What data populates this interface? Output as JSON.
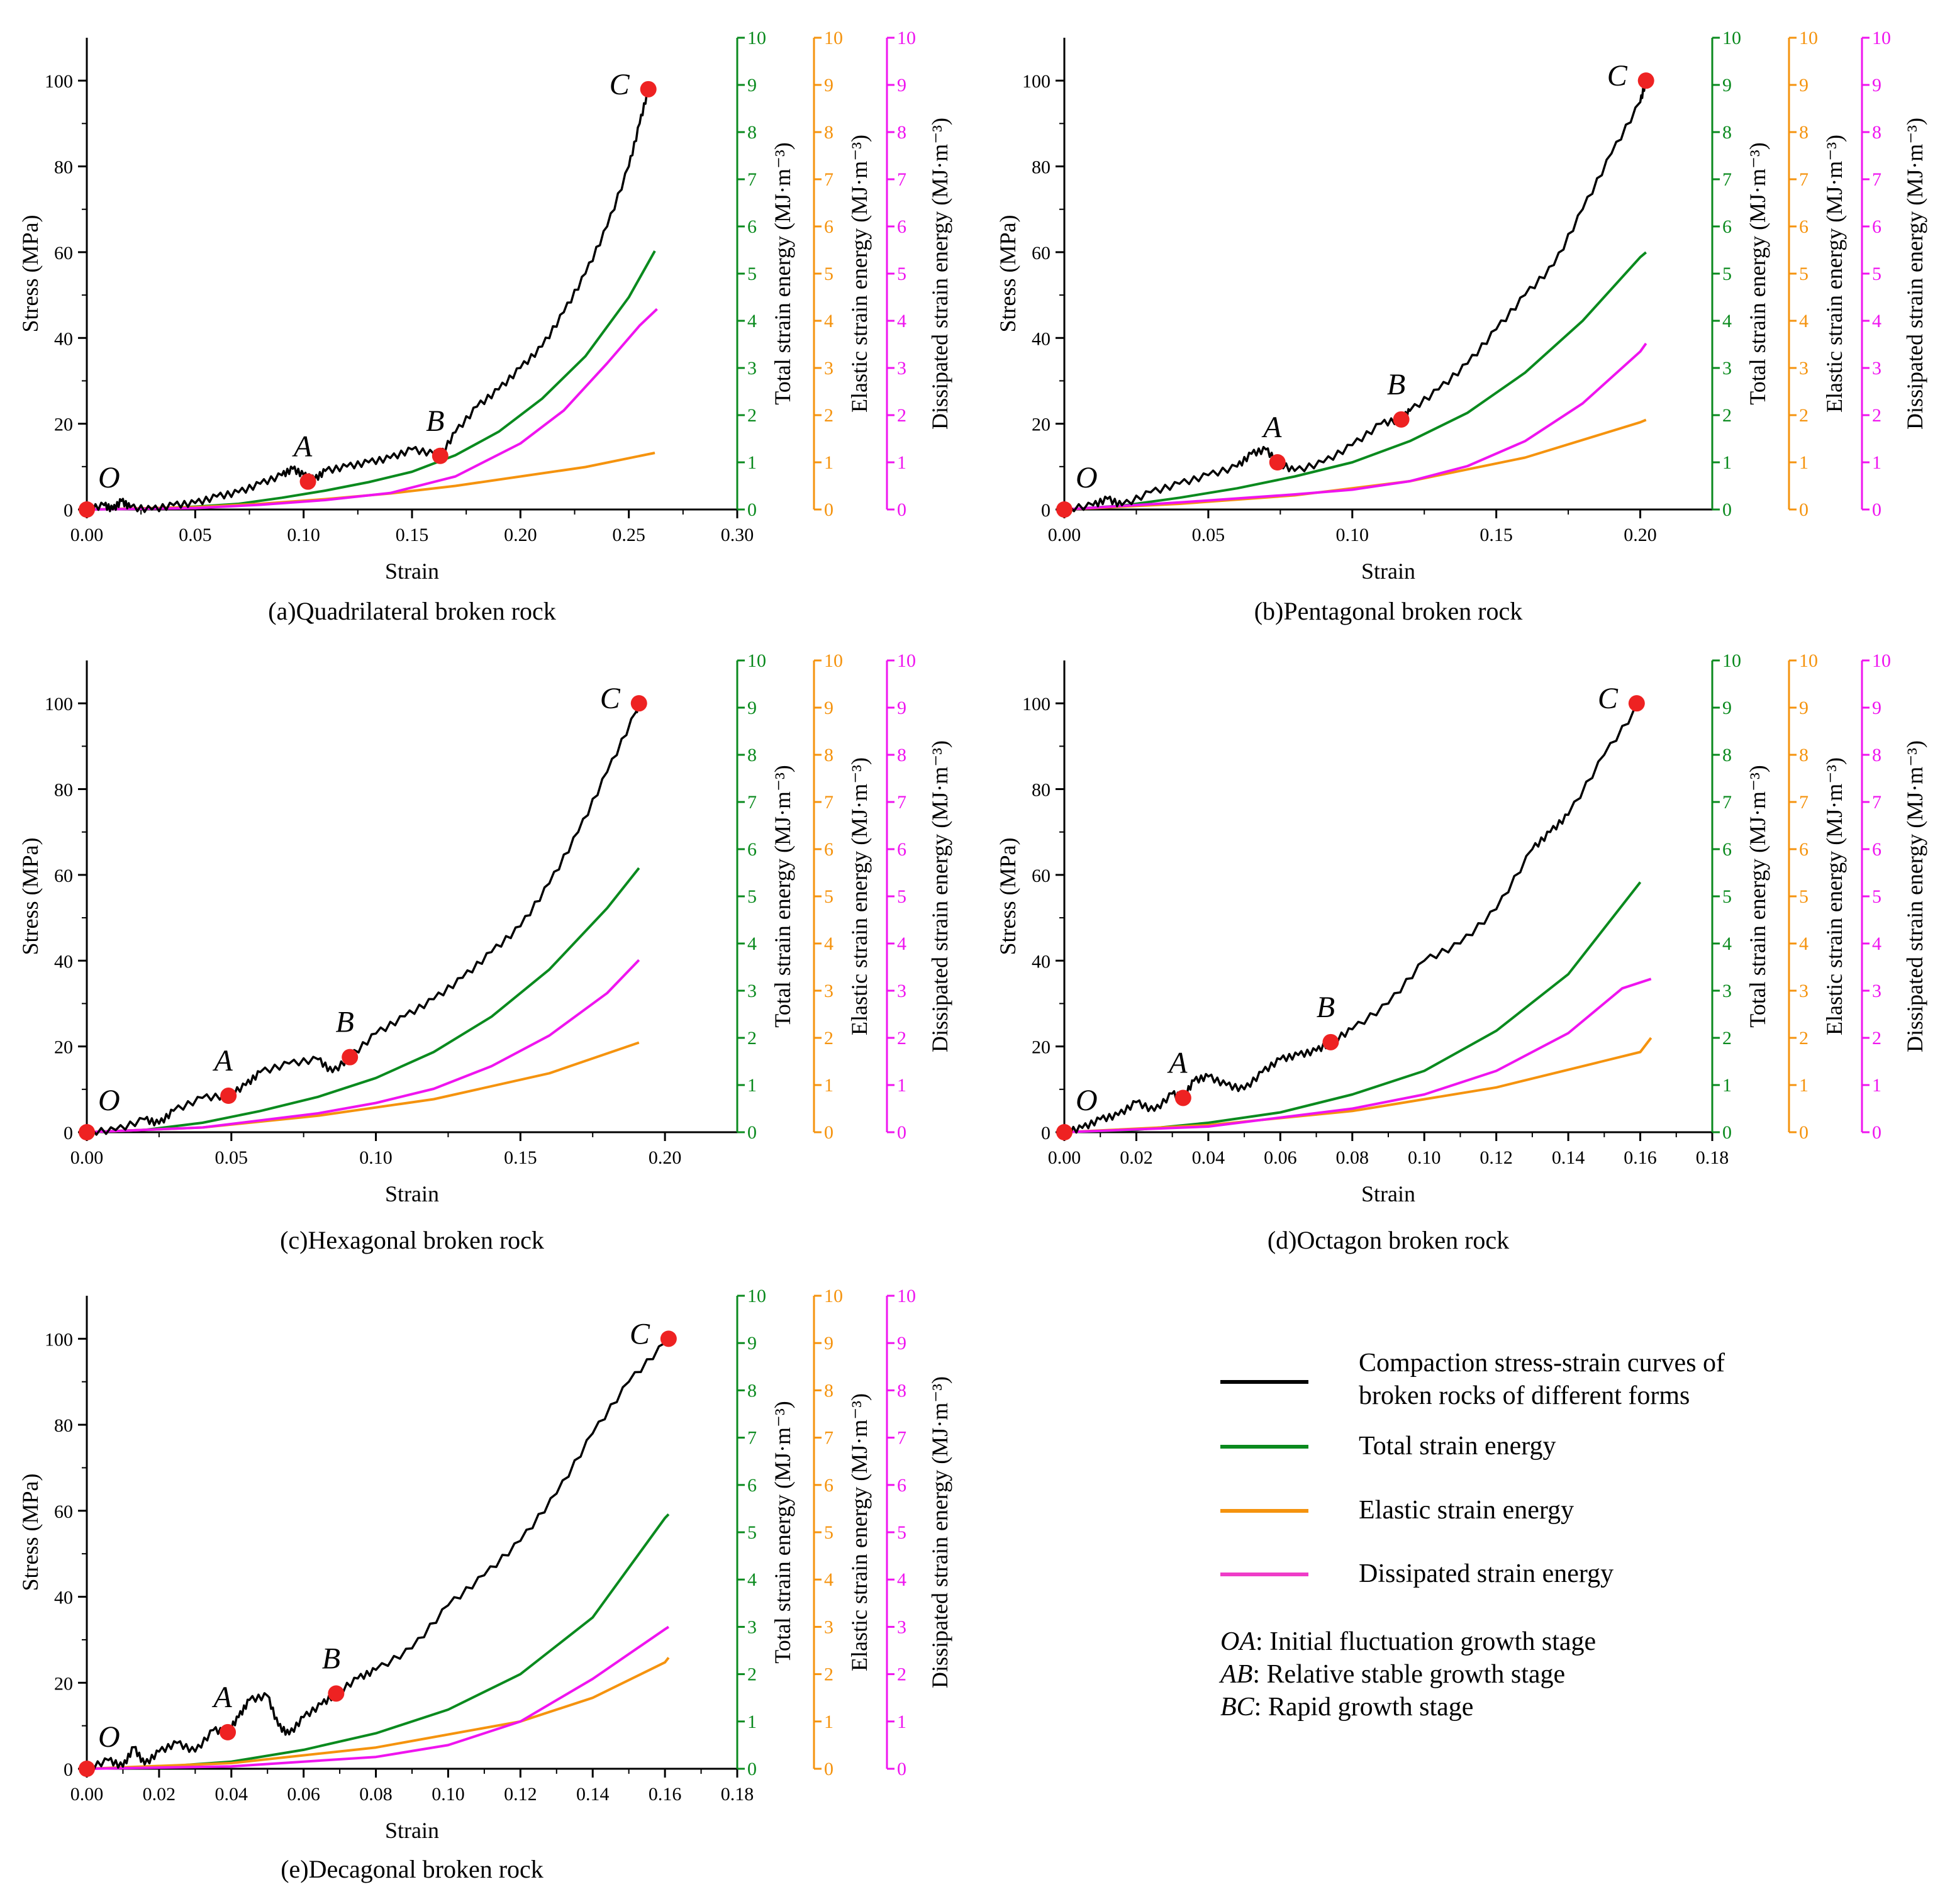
{
  "y_axis_labels": {
    "stress": "Stress (MPa)",
    "total": "Total strain energy (MJ·m⁻³)",
    "elastic": "Elastic strain energy (MJ·m⁻³)",
    "dissipated": "Dissipated strain energy (MJ·m⁻³)"
  },
  "colors": {
    "stress": "#000000",
    "total": "#0a8a1e",
    "elastic": "#f5930e",
    "dissipated": "#ef14ef",
    "points": "#ee2222",
    "total_axis": "#0a8a1e",
    "elastic_axis": "#f5930e",
    "dissipated_axis": "#ef14ef"
  },
  "legend": {
    "entries": [
      {
        "label": "Compaction stress-strain curves of",
        "label2": "broken rocks of different forms",
        "color": "#000000"
      },
      {
        "label": "Total strain energy",
        "color": "#0a8a1e"
      },
      {
        "label": "Elastic strain energy",
        "color": "#f5930e"
      },
      {
        "label": "Dissipated strain energy",
        "color": "#ef3cc8"
      }
    ],
    "stages": [
      {
        "abbr": "OA",
        "text": ": Initial fluctuation growth stage"
      },
      {
        "abbr": "AB",
        "text": ": Relative stable growth stage"
      },
      {
        "abbr": "BC",
        "text": ": Rapid growth stage"
      }
    ]
  },
  "chart_data": [
    {
      "type": "line",
      "caption": "(a)Quadrilateral broken rock",
      "xlabel": "Strain",
      "ylabel": "Stress (MPa)",
      "xlim": [
        0,
        0.3
      ],
      "xticks": [
        "0.00",
        "0.05",
        "0.10",
        "0.15",
        "0.20",
        "0.25",
        "0.30"
      ],
      "ylim": [
        0,
        110
      ],
      "yticks": [
        "0",
        "20",
        "40",
        "60",
        "80",
        "100"
      ],
      "energy_ylim": [
        0,
        10
      ],
      "energy_ticks": [
        "0",
        "1",
        "2",
        "3",
        "4",
        "5",
        "6",
        "7",
        "8",
        "9",
        "10"
      ],
      "stress": {
        "x": [
          0,
          0.008,
          0.012,
          0.016,
          0.02,
          0.03,
          0.04,
          0.05,
          0.06,
          0.07,
          0.08,
          0.09,
          0.095,
          0.1,
          0.105,
          0.11,
          0.12,
          0.13,
          0.14,
          0.15,
          0.16,
          0.163,
          0.17,
          0.18,
          0.19,
          0.2,
          0.21,
          0.22,
          0.23,
          0.24,
          0.25,
          0.255,
          0.259
        ],
        "y": [
          0,
          1,
          0,
          2,
          0.5,
          0,
          1,
          1.5,
          3,
          4,
          6,
          8,
          9.5,
          8,
          7,
          9,
          10,
          11,
          12,
          14,
          13,
          12.5,
          18,
          24,
          28,
          33,
          38,
          46,
          55,
          66,
          80,
          90,
          98
        ]
      },
      "total": {
        "x": [
          0,
          0.03,
          0.05,
          0.07,
          0.09,
          0.11,
          0.13,
          0.15,
          0.17,
          0.19,
          0.21,
          0.23,
          0.25,
          0.262
        ],
        "y": [
          0,
          0.02,
          0.06,
          0.12,
          0.25,
          0.4,
          0.58,
          0.8,
          1.15,
          1.65,
          2.35,
          3.25,
          4.5,
          5.48
        ]
      },
      "elastic": {
        "x": [
          0,
          0.05,
          0.08,
          0.11,
          0.14,
          0.17,
          0.2,
          0.23,
          0.262
        ],
        "y": [
          0,
          0.05,
          0.12,
          0.22,
          0.34,
          0.5,
          0.7,
          0.9,
          1.2
        ]
      },
      "dissipated": {
        "x": [
          0,
          0.05,
          0.08,
          0.11,
          0.14,
          0.17,
          0.2,
          0.22,
          0.24,
          0.255,
          0.263
        ],
        "y": [
          0,
          0.03,
          0.1,
          0.2,
          0.35,
          0.7,
          1.4,
          2.1,
          3.1,
          3.9,
          4.25
        ]
      },
      "points": [
        {
          "label": "O",
          "x": 0,
          "y": 0
        },
        {
          "label": "A",
          "x": 0.102,
          "y": 6.5
        },
        {
          "label": "B",
          "x": 0.163,
          "y": 12.5
        },
        {
          "label": "C",
          "x": 0.259,
          "y": 98
        }
      ]
    },
    {
      "type": "line",
      "caption": "(b)Pentagonal broken rock",
      "xlabel": "Strain",
      "ylabel": "Stress (MPa)",
      "xlim": [
        0,
        0.225
      ],
      "xticks": [
        "0.00",
        "0.05",
        "0.10",
        "0.15",
        "0.20"
      ],
      "ylim": [
        0,
        110
      ],
      "yticks": [
        "0",
        "20",
        "40",
        "60",
        "80",
        "100"
      ],
      "energy_ylim": [
        0,
        10
      ],
      "energy_ticks": [
        "0",
        "1",
        "2",
        "3",
        "4",
        "5",
        "6",
        "7",
        "8",
        "9",
        "10"
      ],
      "stress": {
        "x": [
          0,
          0.01,
          0.015,
          0.02,
          0.03,
          0.04,
          0.05,
          0.06,
          0.065,
          0.07,
          0.074,
          0.08,
          0.09,
          0.1,
          0.11,
          0.117,
          0.12,
          0.13,
          0.14,
          0.15,
          0.16,
          0.17,
          0.18,
          0.19,
          0.2,
          0.202
        ],
        "y": [
          0,
          1,
          2.5,
          1,
          4,
          6,
          8,
          10,
          13,
          14,
          11,
          9,
          11,
          15,
          20,
          21,
          23,
          28,
          34,
          42,
          50,
          57,
          70,
          83,
          95,
          100
        ]
      },
      "total": {
        "x": [
          0,
          0.02,
          0.04,
          0.06,
          0.08,
          0.1,
          0.12,
          0.14,
          0.16,
          0.18,
          0.2,
          0.202
        ],
        "y": [
          0,
          0.08,
          0.25,
          0.45,
          0.7,
          1.0,
          1.45,
          2.05,
          2.9,
          4.0,
          5.35,
          5.45
        ]
      },
      "elastic": {
        "x": [
          0,
          0.04,
          0.08,
          0.12,
          0.16,
          0.2,
          0.202
        ],
        "y": [
          0,
          0.12,
          0.3,
          0.6,
          1.1,
          1.85,
          1.9
        ]
      },
      "dissipated": {
        "x": [
          0,
          0.04,
          0.08,
          0.1,
          0.12,
          0.14,
          0.16,
          0.18,
          0.2,
          0.202
        ],
        "y": [
          0,
          0.15,
          0.32,
          0.42,
          0.6,
          0.92,
          1.45,
          2.25,
          3.35,
          3.52
        ]
      },
      "points": [
        {
          "label": "O",
          "x": 0,
          "y": 0
        },
        {
          "label": "A",
          "x": 0.074,
          "y": 11
        },
        {
          "label": "B",
          "x": 0.117,
          "y": 21
        },
        {
          "label": "C",
          "x": 0.202,
          "y": 100
        }
      ]
    },
    {
      "type": "line",
      "caption": "(c)Hexagonal broken rock",
      "xlabel": "Strain",
      "ylabel": "Stress (MPa)",
      "xlim": [
        0,
        0.225
      ],
      "xticks": [
        "0.00",
        "0.05",
        "0.10",
        "0.15",
        "0.20"
      ],
      "ylim": [
        0,
        110
      ],
      "yticks": [
        "0",
        "20",
        "40",
        "60",
        "80",
        "100"
      ],
      "energy_ylim": [
        0,
        10
      ],
      "energy_ticks": [
        "0",
        "1",
        "2",
        "3",
        "4",
        "5",
        "6",
        "7",
        "8",
        "9",
        "10"
      ],
      "stress": {
        "x": [
          0,
          0.01,
          0.02,
          0.025,
          0.03,
          0.04,
          0.049,
          0.055,
          0.06,
          0.07,
          0.08,
          0.085,
          0.091,
          0.1,
          0.11,
          0.12,
          0.13,
          0.14,
          0.15,
          0.16,
          0.17,
          0.18,
          0.19,
          0.191
        ],
        "y": [
          0,
          0.5,
          3,
          2,
          5,
          8,
          8.5,
          11,
          14,
          16,
          17,
          14,
          17.5,
          23,
          27,
          31,
          36,
          42,
          48,
          58,
          70,
          84,
          98,
          100
        ]
      },
      "total": {
        "x": [
          0,
          0.02,
          0.04,
          0.06,
          0.08,
          0.1,
          0.12,
          0.14,
          0.16,
          0.18,
          0.191
        ],
        "y": [
          0,
          0.05,
          0.2,
          0.45,
          0.75,
          1.15,
          1.7,
          2.45,
          3.45,
          4.75,
          5.6
        ]
      },
      "elastic": {
        "x": [
          0,
          0.04,
          0.08,
          0.12,
          0.16,
          0.191
        ],
        "y": [
          0,
          0.1,
          0.35,
          0.7,
          1.25,
          1.9
        ]
      },
      "dissipated": {
        "x": [
          0,
          0.04,
          0.08,
          0.1,
          0.12,
          0.14,
          0.16,
          0.18,
          0.191
        ],
        "y": [
          0,
          0.1,
          0.4,
          0.62,
          0.92,
          1.4,
          2.05,
          2.95,
          3.65
        ]
      },
      "points": [
        {
          "label": "O",
          "x": 0,
          "y": 0
        },
        {
          "label": "A",
          "x": 0.049,
          "y": 8.5
        },
        {
          "label": "B",
          "x": 0.091,
          "y": 17.5
        },
        {
          "label": "C",
          "x": 0.191,
          "y": 100
        }
      ]
    },
    {
      "type": "line",
      "caption": "(d)Octagon broken rock",
      "xlabel": "Strain",
      "ylabel": "Stress (MPa)",
      "xlim": [
        0,
        0.18
      ],
      "xticks": [
        "0.00",
        "0.02",
        "0.04",
        "0.06",
        "0.08",
        "0.10",
        "0.12",
        "0.14",
        "0.16",
        "0.18"
      ],
      "ylim": [
        0,
        110
      ],
      "yticks": [
        "0",
        "20",
        "40",
        "60",
        "80",
        "100"
      ],
      "energy_ylim": [
        0,
        10
      ],
      "energy_ticks": [
        "0",
        "1",
        "2",
        "3",
        "4",
        "5",
        "6",
        "7",
        "8",
        "9",
        "10"
      ],
      "stress": {
        "x": [
          0,
          0.005,
          0.01,
          0.015,
          0.02,
          0.025,
          0.03,
          0.033,
          0.036,
          0.04,
          0.045,
          0.05,
          0.055,
          0.06,
          0.065,
          0.07,
          0.074,
          0.08,
          0.09,
          0.1,
          0.11,
          0.12,
          0.13,
          0.135,
          0.14,
          0.15,
          0.16
        ],
        "y": [
          0,
          1,
          3,
          4,
          7,
          5,
          9,
          8,
          12,
          13,
          11,
          10,
          14,
          17,
          18,
          19,
          21,
          24,
          30,
          40,
          44,
          52,
          66,
          70,
          74,
          88,
          100
        ]
      },
      "total": {
        "x": [
          0,
          0.02,
          0.04,
          0.06,
          0.08,
          0.1,
          0.12,
          0.14,
          0.16
        ],
        "y": [
          0,
          0.05,
          0.2,
          0.42,
          0.8,
          1.3,
          2.15,
          3.35,
          5.3
        ]
      },
      "elastic": {
        "x": [
          0,
          0.04,
          0.08,
          0.12,
          0.16,
          0.163
        ],
        "y": [
          0,
          0.15,
          0.45,
          0.95,
          1.7,
          2.0
        ]
      },
      "dissipated": {
        "x": [
          0,
          0.04,
          0.08,
          0.1,
          0.12,
          0.14,
          0.155,
          0.163
        ],
        "y": [
          0,
          0.12,
          0.5,
          0.8,
          1.3,
          2.1,
          3.05,
          3.25
        ]
      },
      "points": [
        {
          "label": "O",
          "x": 0,
          "y": 0
        },
        {
          "label": "A",
          "x": 0.033,
          "y": 8
        },
        {
          "label": "B",
          "x": 0.074,
          "y": 21
        },
        {
          "label": "C",
          "x": 0.159,
          "y": 100
        }
      ]
    },
    {
      "type": "line",
      "caption": "(e)Decagonal broken rock",
      "xlabel": "Strain",
      "ylabel": "Stress (MPa)",
      "xlim": [
        0,
        0.18
      ],
      "xticks": [
        "0.00",
        "0.02",
        "0.04",
        "0.06",
        "0.08",
        "0.10",
        "0.12",
        "0.14",
        "0.16",
        "0.18"
      ],
      "ylim": [
        0,
        110
      ],
      "yticks": [
        "0",
        "20",
        "40",
        "60",
        "80",
        "100"
      ],
      "energy_ylim": [
        0,
        10
      ],
      "energy_ticks": [
        "0",
        "1",
        "2",
        "3",
        "4",
        "5",
        "6",
        "7",
        "8",
        "9",
        "10"
      ],
      "stress": {
        "x": [
          0,
          0.006,
          0.01,
          0.013,
          0.016,
          0.02,
          0.025,
          0.03,
          0.035,
          0.039,
          0.042,
          0.045,
          0.05,
          0.053,
          0.056,
          0.06,
          0.065,
          0.069,
          0.075,
          0.08,
          0.09,
          0.1,
          0.11,
          0.12,
          0.13,
          0.14,
          0.15,
          0.16,
          0.161
        ],
        "y": [
          0,
          2,
          0.5,
          5,
          1,
          4,
          6,
          4,
          9,
          8.5,
          12,
          16,
          17,
          10,
          8,
          12,
          15,
          17.5,
          21,
          23,
          28,
          38,
          45,
          53,
          64,
          78,
          90,
          99,
          100
        ]
      },
      "total": {
        "x": [
          0,
          0.02,
          0.04,
          0.06,
          0.08,
          0.1,
          0.12,
          0.14,
          0.16,
          0.161
        ],
        "y": [
          0,
          0.04,
          0.15,
          0.4,
          0.75,
          1.25,
          2.0,
          3.2,
          5.3,
          5.38
        ]
      },
      "elastic": {
        "x": [
          0,
          0.04,
          0.08,
          0.12,
          0.14,
          0.16,
          0.161
        ],
        "y": [
          0,
          0.12,
          0.45,
          1.0,
          1.5,
          2.25,
          2.35
        ]
      },
      "dissipated": {
        "x": [
          0,
          0.04,
          0.08,
          0.1,
          0.12,
          0.14,
          0.16,
          0.161
        ],
        "y": [
          0,
          0.05,
          0.25,
          0.5,
          1.0,
          1.9,
          2.95,
          3.0
        ]
      },
      "points": [
        {
          "label": "O",
          "x": 0,
          "y": 0
        },
        {
          "label": "A",
          "x": 0.039,
          "y": 8.5
        },
        {
          "label": "B",
          "x": 0.069,
          "y": 17.5
        },
        {
          "label": "C",
          "x": 0.161,
          "y": 100
        }
      ]
    }
  ]
}
